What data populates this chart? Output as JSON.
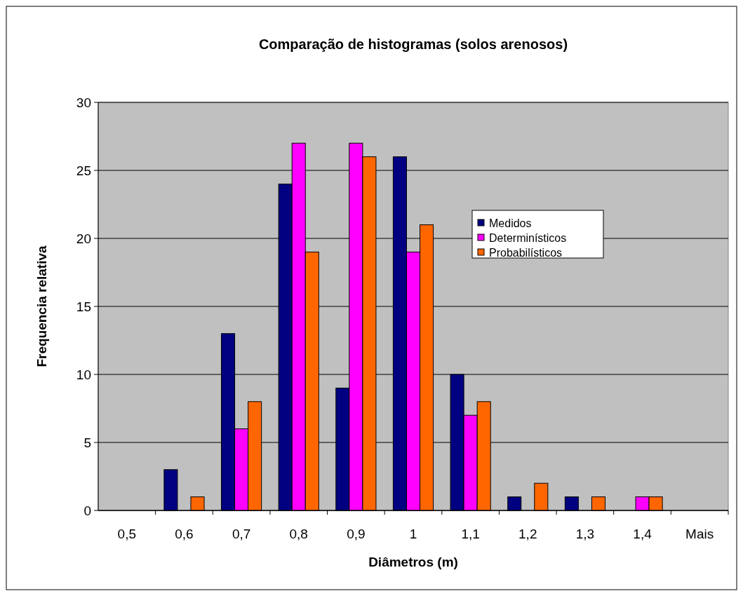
{
  "chart_data": {
    "type": "bar",
    "title": "Comparação de histogramas (solos arenosos)",
    "xlabel": "Diâmetros (m)",
    "ylabel": "Frequencia relativa",
    "categories": [
      "0,5",
      "0,6",
      "0,7",
      "0,8",
      "0,9",
      "1",
      "1,1",
      "1,2",
      "1,3",
      "1,4",
      "Mais"
    ],
    "series": [
      {
        "name": "Medidos",
        "color": "#000080",
        "values": [
          0,
          3,
          13,
          24,
          9,
          26,
          10,
          1,
          1,
          0,
          0
        ]
      },
      {
        "name": "Determinísticos",
        "color": "#ff00ff",
        "values": [
          0,
          0,
          6,
          27,
          27,
          19,
          7,
          0,
          0,
          1,
          0
        ]
      },
      {
        "name": "Probabilísticos",
        "color": "#ff6600",
        "values": [
          0,
          1,
          8,
          19,
          26,
          21,
          8,
          2,
          1,
          1,
          0
        ]
      }
    ],
    "ylim": [
      0,
      30
    ],
    "yticks": [
      0,
      5,
      10,
      15,
      20,
      25,
      30
    ],
    "grid": "y",
    "legend": "right"
  }
}
